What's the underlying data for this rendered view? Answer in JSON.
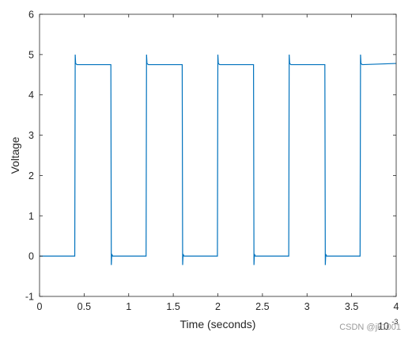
{
  "chart_data": {
    "type": "line",
    "title": "",
    "xlabel": "Time (seconds)",
    "ylabel": "Voltage",
    "x_exponent_label": "10",
    "x_exponent_power": "-3",
    "xlim": [
      0,
      4
    ],
    "ylim": [
      -1,
      6
    ],
    "x_unit_multiplier": 0.001,
    "xticks": [
      "0",
      "0.5",
      "1",
      "1.5",
      "2",
      "2.5",
      "3",
      "3.5",
      "4"
    ],
    "yticks": [
      "-1",
      "0",
      "1",
      "2",
      "3",
      "4",
      "5",
      "6"
    ],
    "grid": false,
    "box": true,
    "series_color": "#0072bd",
    "series": [
      {
        "x": [
          0,
          0.395,
          0.4,
          0.405,
          0.42,
          0.8,
          0.805,
          0.81,
          0.82,
          1.195,
          1.2,
          1.205,
          1.22,
          1.6,
          1.605,
          1.61,
          1.62,
          1.995,
          2.0,
          2.005,
          2.02,
          2.4,
          2.405,
          2.41,
          2.42,
          2.795,
          2.8,
          2.805,
          2.82,
          3.2,
          3.205,
          3.21,
          3.22,
          3.595,
          3.6,
          3.605,
          3.62,
          4.0
        ],
        "y": [
          0.0,
          0.0,
          5.0,
          4.78,
          4.75,
          4.75,
          -0.22,
          0.05,
          0.0,
          0.0,
          5.0,
          4.78,
          4.75,
          4.75,
          -0.22,
          0.05,
          0.0,
          0.0,
          5.0,
          4.78,
          4.75,
          4.75,
          -0.22,
          0.05,
          0.0,
          0.0,
          5.0,
          4.78,
          4.75,
          4.75,
          -0.22,
          0.05,
          0.0,
          0.0,
          5.0,
          4.78,
          4.75,
          4.78
        ]
      }
    ]
  },
  "watermark": "CSDN @jk1001"
}
